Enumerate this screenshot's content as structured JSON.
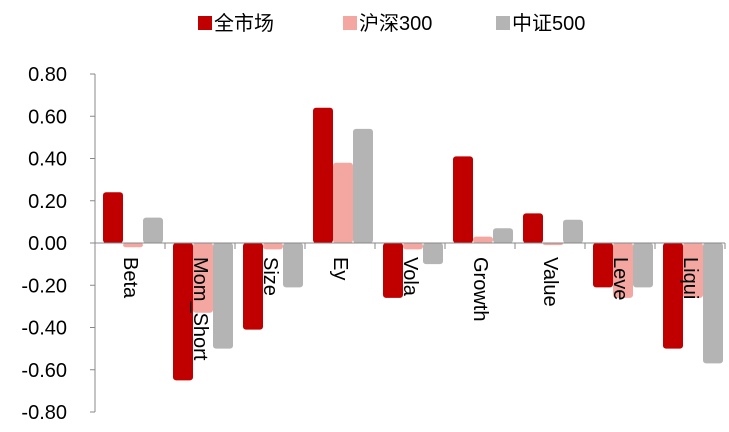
{
  "chart_data": {
    "type": "bar",
    "categories": [
      "Beta",
      "Mom_Short",
      "Size",
      "Ey",
      "Vola",
      "Growth",
      "Value",
      "Leve",
      "Liqui"
    ],
    "series": [
      {
        "name": "全市场",
        "color": "#C00000",
        "values": [
          0.24,
          -0.65,
          -0.41,
          0.64,
          -0.26,
          0.41,
          0.14,
          -0.21,
          -0.5
        ]
      },
      {
        "name": "沪深300",
        "color": "#F4A6A0",
        "values": [
          -0.02,
          -0.33,
          -0.03,
          0.38,
          -0.03,
          0.03,
          -0.01,
          -0.26,
          -0.26
        ]
      },
      {
        "name": "中证500",
        "color": "#B4B4B4",
        "values": [
          0.12,
          -0.5,
          -0.21,
          0.54,
          -0.1,
          0.07,
          0.11,
          -0.21,
          -0.57
        ]
      }
    ],
    "yticks": [
      "0.80",
      "0.60",
      "0.40",
      "0.20",
      "0.00",
      "-0.20",
      "-0.40",
      "-0.60",
      "-0.80"
    ],
    "ylim": [
      -0.8,
      0.8
    ],
    "grid": false,
    "legend_position": "top"
  }
}
